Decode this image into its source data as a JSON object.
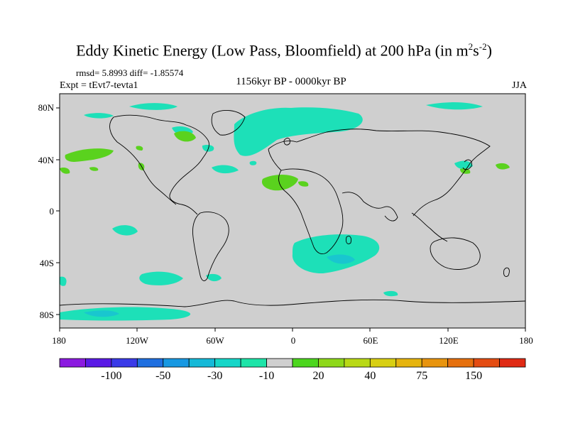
{
  "title": {
    "main": "Eddy Kinetic Energy (Low Pass, Bloomfield) at 200 hPa (in m",
    "sup1": "2",
    "mid": "s",
    "sup2": "-2",
    "end": ")"
  },
  "stats": "rmsd= 5.8993 diff= -1.85574",
  "experiment": "Expt = tEvt7-tevta1",
  "period": "1156kyr BP - 0000kyr BP",
  "season": "JJA",
  "lat_labels": [
    "80N",
    "40N",
    "0",
    "40S",
    "80S"
  ],
  "lon_labels": [
    "180",
    "120W",
    "60W",
    "0",
    "60E",
    "120E",
    "180"
  ],
  "colorbar": {
    "colors": [
      "#8b1ae0",
      "#5a1ae6",
      "#3a3ae8",
      "#1f6fe0",
      "#1798e2",
      "#15b9d8",
      "#16d6c8",
      "#1de4a8",
      "#cfcfcf",
      "#4cd61e",
      "#8ed81a",
      "#b9d916",
      "#d8cf12",
      "#e6b40e",
      "#e8940e",
      "#e6700e",
      "#e44c12",
      "#e02a14"
    ],
    "labels": [
      "-100",
      "-50",
      "-30",
      "-10",
      "20",
      "40",
      "75",
      "150"
    ],
    "label_after_box": [
      2,
      4,
      6,
      8,
      10,
      12,
      14,
      16
    ]
  },
  "colors": {
    "background": "#cfcfcf",
    "positive": "#5ad21e",
    "negative_light": "#1de0b8",
    "negative_mid": "#19c6cf"
  }
}
